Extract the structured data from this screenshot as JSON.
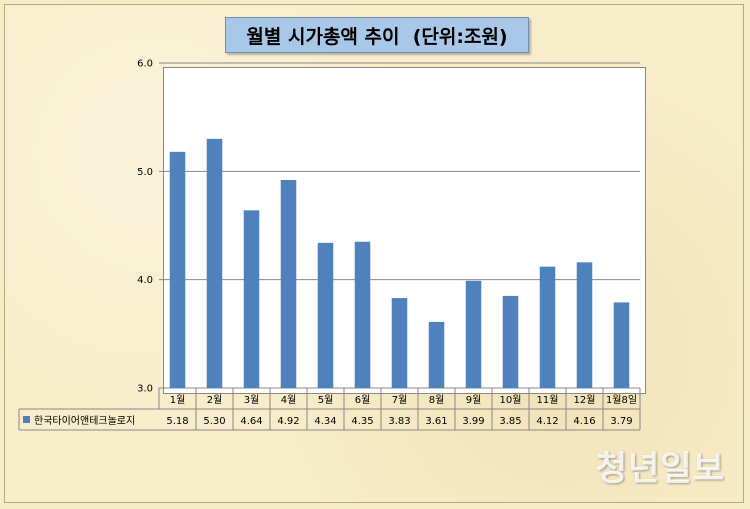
{
  "title": "월별 시가총액 추이  (단위:조원)",
  "watermark": "청년일보",
  "chart_data": {
    "type": "bar",
    "categories": [
      "1월",
      "2월",
      "3월",
      "4월",
      "5월",
      "6월",
      "7월",
      "8월",
      "9월",
      "10월",
      "11월",
      "12월",
      "1월8일"
    ],
    "series": [
      {
        "name": "한국타이어앤테크놀로지",
        "values": [
          5.18,
          5.3,
          4.64,
          4.92,
          4.34,
          4.35,
          3.83,
          3.61,
          3.99,
          3.85,
          4.12,
          4.16,
          3.79
        ]
      }
    ],
    "value_labels": [
      "5.18",
      "5.30",
      "4.64",
      "4.92",
      "4.34",
      "4.35",
      "3.83",
      "3.61",
      "3.99",
      "3.85",
      "4.12",
      "4.16",
      "3.79"
    ],
    "ylim": [
      3.0,
      6.0
    ],
    "yticks": [
      3.0,
      4.0,
      5.0,
      6.0
    ],
    "ytick_labels": [
      "3.0",
      "4.0",
      "5.0",
      "6.0"
    ],
    "grid": true,
    "legend_placement": "data-table-left",
    "bar_color": "#4f81bd"
  }
}
